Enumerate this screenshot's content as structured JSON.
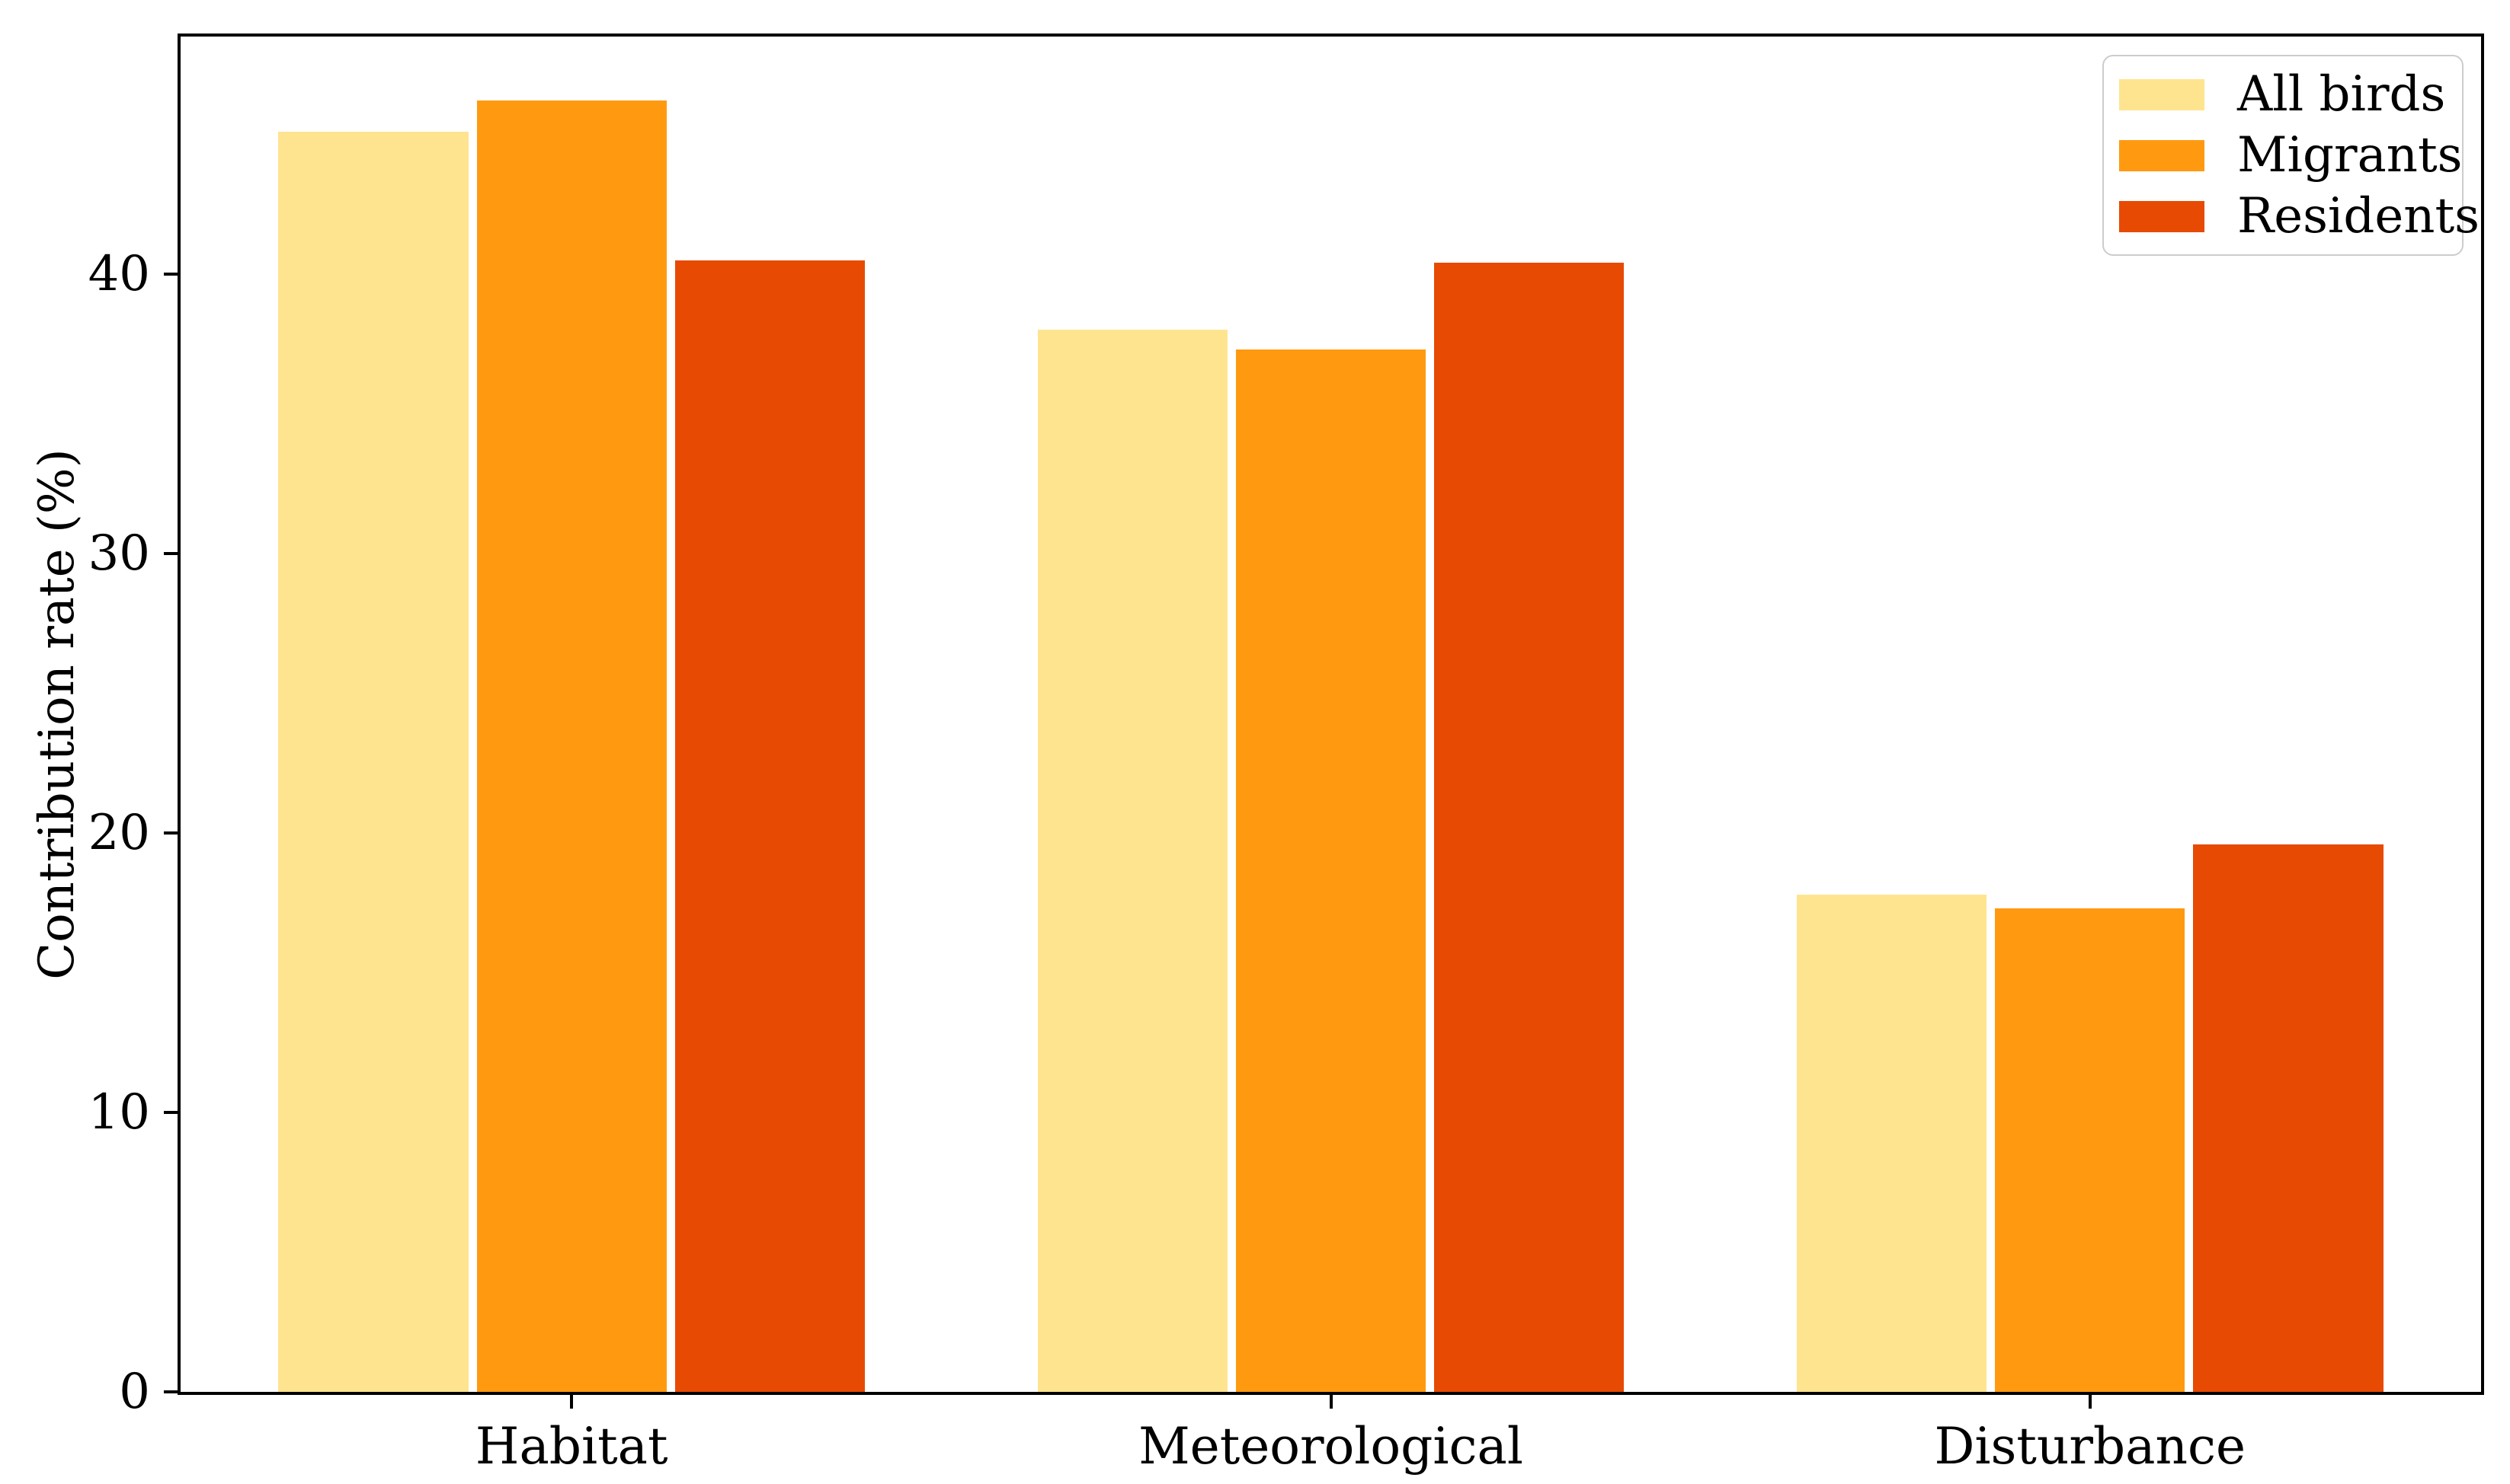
{
  "chart_data": {
    "type": "bar",
    "title": "",
    "xlabel": "",
    "ylabel": "Contribution rate (%)",
    "categories": [
      "Habitat",
      "Meteorological",
      "Disturbance"
    ],
    "series": [
      {
        "name": "All birds",
        "color": "#FFE48F",
        "values": [
          45.1,
          38.0,
          17.8
        ]
      },
      {
        "name": "Migrants",
        "color": "#FF9A10",
        "values": [
          46.2,
          37.3,
          17.3
        ]
      },
      {
        "name": "Residents",
        "color": "#E74A02",
        "values": [
          40.5,
          40.4,
          19.6
        ]
      }
    ],
    "ylim": [
      0,
      48.5
    ],
    "yticks": [
      0,
      10,
      20,
      30,
      40
    ],
    "grid": false,
    "legend_position": "upper right",
    "axis_color": "#000000",
    "legend_border_color": "#cccccc",
    "background_color": "#ffffff"
  }
}
